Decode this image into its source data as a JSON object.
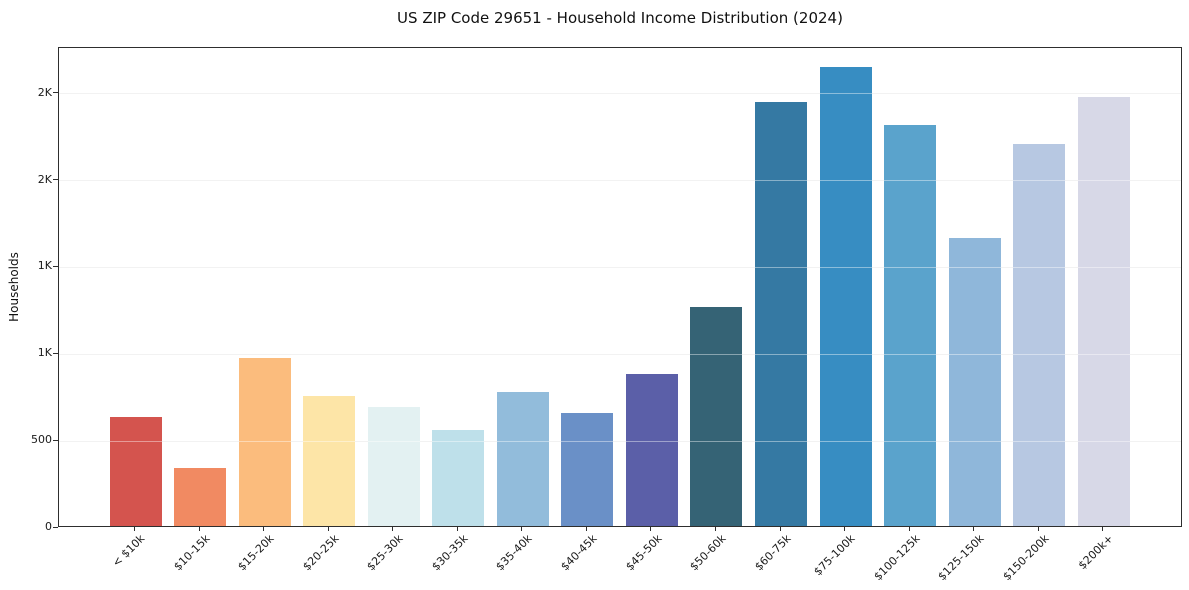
{
  "title": "US ZIP Code 29651 - Household Income Distribution (2024)",
  "chart_data": {
    "type": "bar",
    "title": "US ZIP Code 29651 - Household Income Distribution (2024)",
    "xlabel": "",
    "ylabel": "Households",
    "ylim": [
      0,
      2763
    ],
    "grid": "horizontal-only",
    "legend": "none",
    "background": "#ffffff",
    "yticks": [
      {
        "value": 0,
        "label": "0"
      },
      {
        "value": 500,
        "label": "500"
      },
      {
        "value": 1000,
        "label": "1K"
      },
      {
        "value": 1500,
        "label": "1K"
      },
      {
        "value": 2000,
        "label": "2K"
      },
      {
        "value": 2500,
        "label": "2K"
      }
    ],
    "categories": [
      "< $10k",
      "$10-15k",
      "$15-20k",
      "$20-25k",
      "$25-30k",
      "$30-35k",
      "$35-40k",
      "$40-45k",
      "$45-50k",
      "$50-60k",
      "$60-75k",
      "$75-100k",
      "$100-125k",
      "$125-150k",
      "$150-200k",
      "$200k+"
    ],
    "values": [
      625,
      335,
      965,
      750,
      685,
      550,
      770,
      650,
      875,
      1260,
      2440,
      2640,
      2310,
      1660,
      2200,
      2470
    ],
    "bar_colors": [
      "#d4544e",
      "#f18a62",
      "#fbbc7d",
      "#fde5a7",
      "#e3f1f2",
      "#bee0ea",
      "#92bcdb",
      "#6a90c7",
      "#5b5fa8",
      "#356375",
      "#3579a3",
      "#378dc2",
      "#5aa3cc",
      "#8fb7da",
      "#b7c8e2",
      "#d7d8e7"
    ]
  }
}
